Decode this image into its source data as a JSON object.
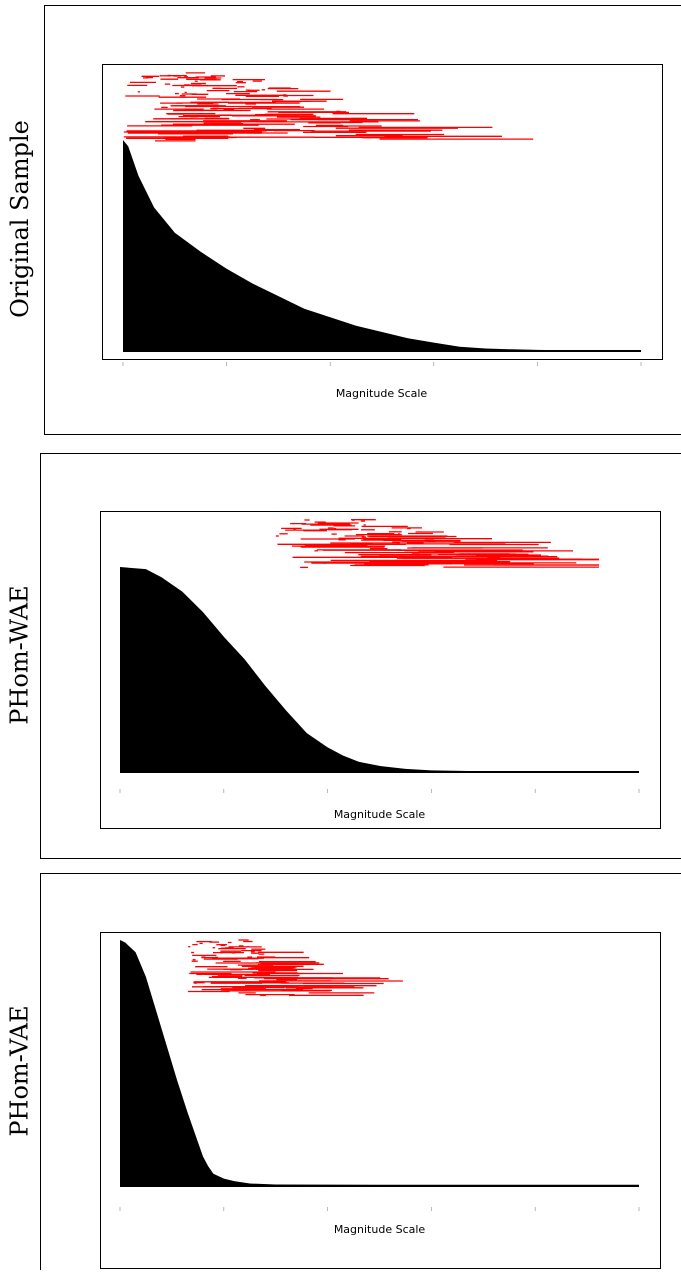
{
  "colors": {
    "barcode": "#ff0000",
    "area": "#000000",
    "frame": "#000000"
  },
  "chart_data": [
    {
      "type": "area",
      "row_label": "Original Sample",
      "xlabel": "Magnitude Scale",
      "area_profile": {
        "x": [
          0,
          0.01,
          0.03,
          0.06,
          0.1,
          0.15,
          0.2,
          0.25,
          0.3,
          0.35,
          0.4,
          0.45,
          0.5,
          0.55,
          0.6,
          0.65,
          0.7,
          0.75,
          0.8,
          0.85,
          0.9,
          0.95,
          1.0
        ],
        "y": [
          1.0,
          0.97,
          0.83,
          0.68,
          0.56,
          0.47,
          0.39,
          0.32,
          0.26,
          0.2,
          0.16,
          0.12,
          0.09,
          0.06,
          0.04,
          0.02,
          0.012,
          0.008,
          0.005,
          0.004,
          0.003,
          0.003,
          0.003
        ]
      },
      "barcode": {
        "start_range": [
          0.0,
          0.55
        ],
        "max_length": 0.3,
        "count": 150,
        "seed": 3
      }
    },
    {
      "type": "area",
      "row_label": "PHom-WAE",
      "xlabel": "Magnitude Scale",
      "area_profile": {
        "x": [
          0,
          0.05,
          0.08,
          0.12,
          0.16,
          0.2,
          0.24,
          0.28,
          0.32,
          0.36,
          0.4,
          0.43,
          0.46,
          0.5,
          0.55,
          0.6,
          0.7,
          0.8,
          0.9,
          1.0
        ],
        "y": [
          1.0,
          0.99,
          0.95,
          0.88,
          0.78,
          0.66,
          0.55,
          0.42,
          0.3,
          0.19,
          0.12,
          0.08,
          0.05,
          0.03,
          0.015,
          0.008,
          0.004,
          0.004,
          0.004,
          0.004
        ]
      },
      "barcode": {
        "start_range": [
          0.3,
          0.8
        ],
        "max_length": 0.4,
        "count": 110,
        "seed": 11
      }
    },
    {
      "type": "area",
      "row_label": "PHom-VAE",
      "xlabel": "Magnitude Scale",
      "area_profile": {
        "x": [
          0,
          0.01,
          0.03,
          0.05,
          0.07,
          0.09,
          0.11,
          0.13,
          0.15,
          0.16,
          0.17,
          0.18,
          0.2,
          0.22,
          0.25,
          0.3,
          0.5,
          1.0
        ],
        "y": [
          1.0,
          0.99,
          0.95,
          0.85,
          0.71,
          0.57,
          0.43,
          0.3,
          0.18,
          0.12,
          0.08,
          0.05,
          0.03,
          0.02,
          0.01,
          0.006,
          0.005,
          0.005
        ]
      },
      "barcode": {
        "start_range": [
          0.13,
          0.4
        ],
        "max_length": 0.25,
        "count": 110,
        "seed": 29
      }
    }
  ]
}
